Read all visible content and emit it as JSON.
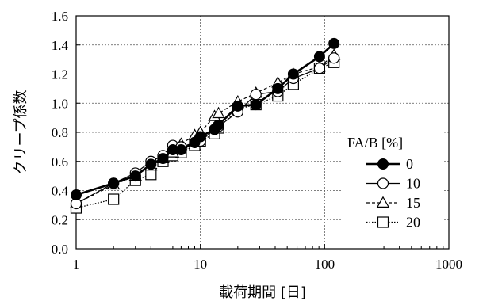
{
  "chart_data": {
    "type": "line",
    "xlabel": "載荷期間 [日]",
    "ylabel": "クリープ係数",
    "xscale": "log",
    "xlim": [
      1,
      1000
    ],
    "ylim": [
      0.0,
      1.6
    ],
    "xticks": [
      "1",
      "10",
      "100",
      "1000"
    ],
    "yticks": [
      "0.0",
      "0.2",
      "0.4",
      "0.6",
      "0.8",
      "1.0",
      "1.2",
      "1.4",
      "1.6"
    ],
    "grid": "dashed",
    "legend_title": "FA/B [%]",
    "legend_position": "right",
    "series": [
      {
        "name": "0",
        "marker": "filled-circle",
        "line": "solid-thick",
        "points": [
          [
            1,
            0.37
          ],
          [
            2,
            0.45
          ],
          [
            3,
            0.5
          ],
          [
            4,
            0.58
          ],
          [
            5,
            0.62
          ],
          [
            6,
            0.68
          ],
          [
            7,
            0.68
          ],
          [
            9,
            0.73
          ],
          [
            10,
            0.77
          ],
          [
            13,
            0.82
          ],
          [
            14,
            0.85
          ],
          [
            20,
            0.98
          ],
          [
            28,
            0.99
          ],
          [
            42,
            1.1
          ],
          [
            56,
            1.2
          ],
          [
            91,
            1.32
          ],
          [
            119,
            1.41
          ]
        ]
      },
      {
        "name": "10",
        "marker": "open-circle",
        "line": "solid",
        "points": [
          [
            1,
            0.31
          ],
          [
            2,
            0.45
          ],
          [
            3,
            0.52
          ],
          [
            4,
            0.6
          ],
          [
            5,
            0.64
          ],
          [
            6,
            0.71
          ],
          [
            7,
            0.7
          ],
          [
            9,
            0.73
          ],
          [
            10,
            0.74
          ],
          [
            13,
            0.82
          ],
          [
            14,
            0.84
          ],
          [
            20,
            0.94
          ],
          [
            28,
            1.06
          ],
          [
            42,
            1.08
          ],
          [
            56,
            1.17
          ],
          [
            91,
            1.24
          ],
          [
            119,
            1.31
          ]
        ]
      },
      {
        "name": "15",
        "marker": "open-triangle",
        "line": "dashed",
        "points": [
          [
            1,
            0.31
          ],
          [
            2,
            0.44
          ],
          [
            3,
            0.5
          ],
          [
            4,
            0.57
          ],
          [
            5,
            0.62
          ],
          [
            6,
            0.66
          ],
          [
            7,
            0.72
          ],
          [
            9,
            0.78
          ],
          [
            10,
            0.8
          ],
          [
            13,
            0.91
          ],
          [
            14,
            0.93
          ],
          [
            20,
            1.01
          ],
          [
            28,
            1.07
          ],
          [
            42,
            1.14
          ],
          [
            56,
            1.2
          ],
          [
            91,
            1.25
          ],
          [
            119,
            1.33
          ]
        ]
      },
      {
        "name": "20",
        "marker": "open-square",
        "line": "dotted",
        "points": [
          [
            1,
            0.28
          ],
          [
            2,
            0.34
          ],
          [
            3,
            0.47
          ],
          [
            4,
            0.51
          ],
          [
            5,
            0.6
          ],
          [
            6,
            0.64
          ],
          [
            7,
            0.66
          ],
          [
            9,
            0.71
          ],
          [
            10,
            0.74
          ],
          [
            13,
            0.79
          ],
          [
            14,
            0.83
          ],
          [
            20,
            0.96
          ],
          [
            28,
            0.99
          ],
          [
            42,
            1.05
          ],
          [
            56,
            1.13
          ],
          [
            91,
            1.24
          ],
          [
            119,
            1.28
          ]
        ]
      }
    ]
  }
}
